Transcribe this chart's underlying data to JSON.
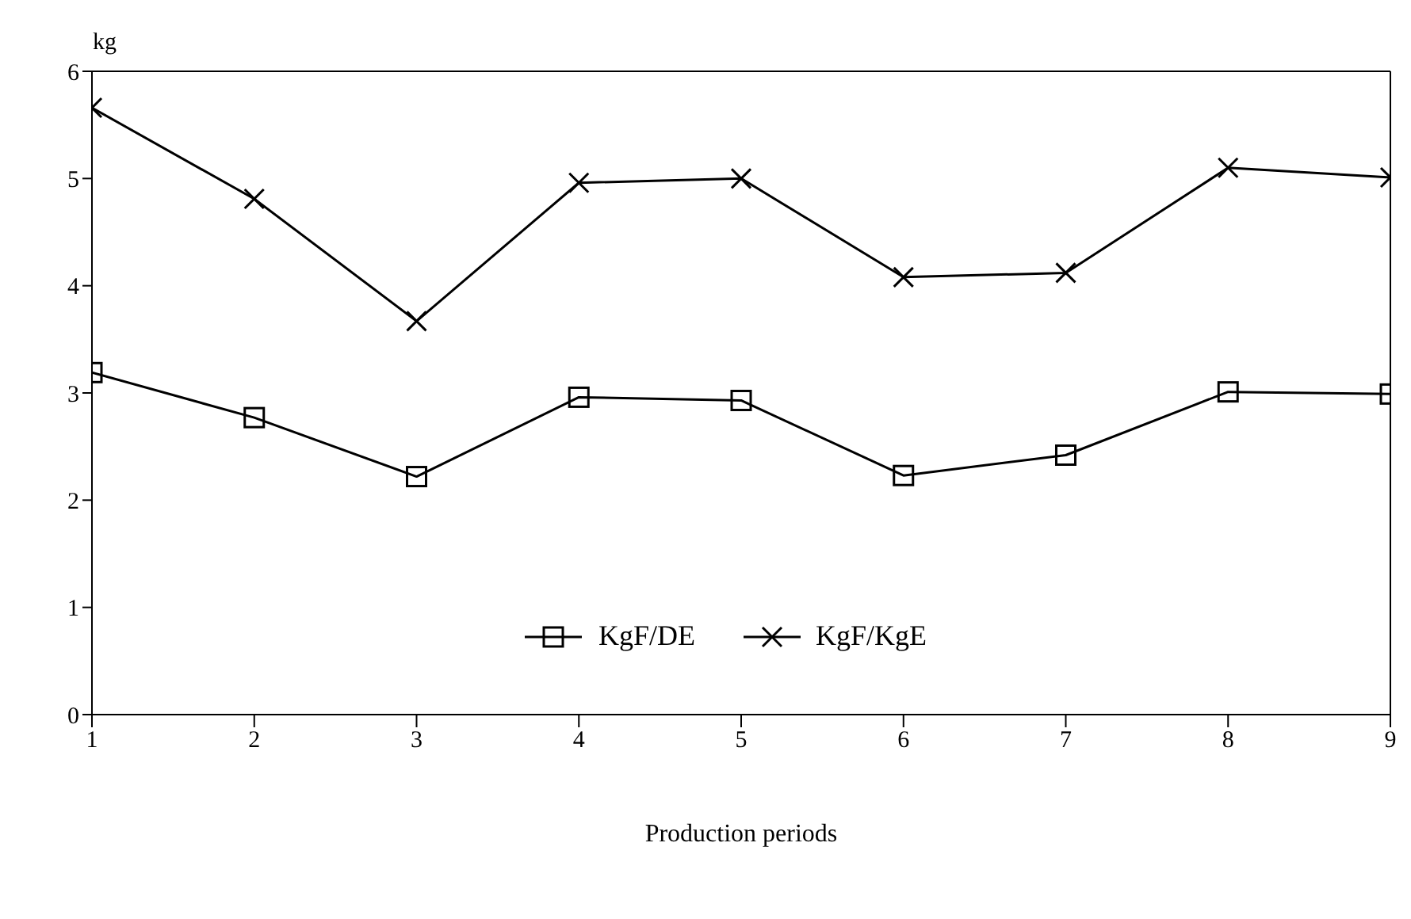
{
  "chart_data": {
    "type": "line",
    "xlabel": "Production periods",
    "ylabel": "kg",
    "x": [
      1,
      2,
      3,
      4,
      5,
      6,
      7,
      8,
      9
    ],
    "xlim": [
      1,
      9
    ],
    "xticks": [
      1,
      2,
      3,
      4,
      5,
      6,
      7,
      8,
      9
    ],
    "ylim": [
      0,
      6
    ],
    "yticks": [
      0,
      1,
      2,
      3,
      4,
      5,
      6
    ],
    "grid": false,
    "legend": "bottom",
    "line_style": "solid",
    "series": [
      {
        "name": "KgF/DE",
        "color": "#000000",
        "marker": "square",
        "values": [
          3.19,
          2.77,
          2.22,
          2.96,
          2.93,
          2.23,
          2.42,
          3.01,
          2.99
        ]
      },
      {
        "name": "KgF/KgE",
        "color": "#000000",
        "marker": "cross",
        "values": [
          5.66,
          4.81,
          3.67,
          4.96,
          5.0,
          4.08,
          4.12,
          5.1,
          5.01
        ]
      }
    ]
  }
}
